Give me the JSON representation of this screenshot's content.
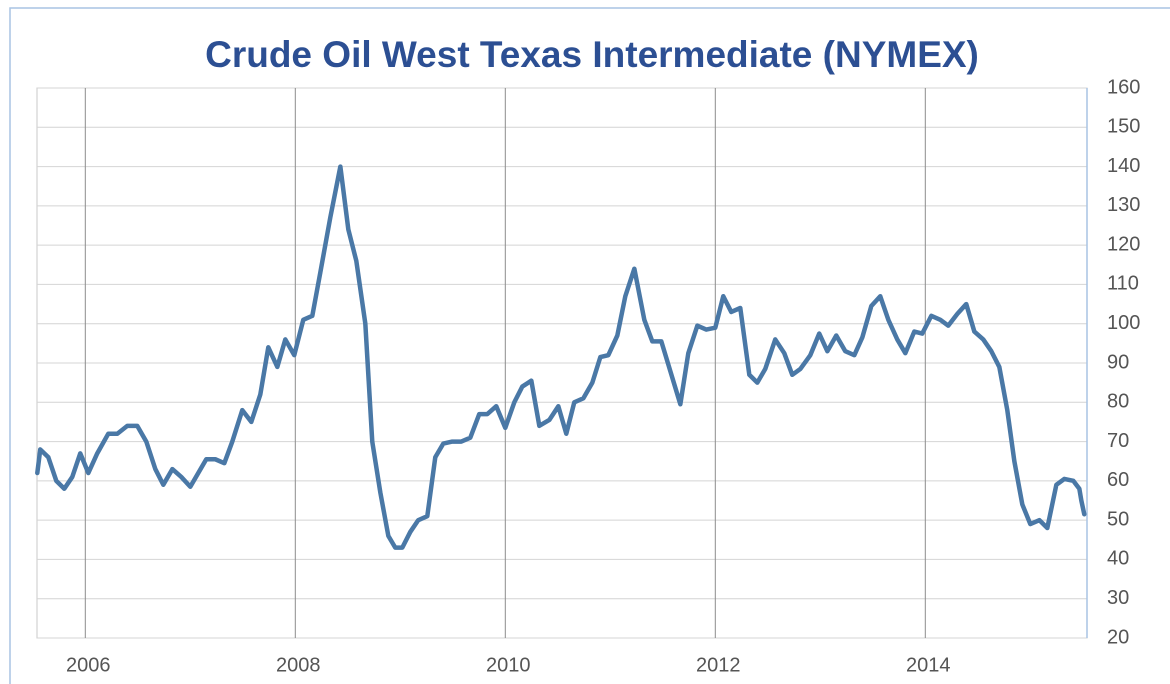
{
  "chart_data": {
    "type": "line",
    "title": "Crude Oil West Texas Intermediate (NYMEX)",
    "xlim": [
      2005.54,
      2015.54
    ],
    "xticks": [
      2006,
      2008,
      2010,
      2012,
      2014
    ],
    "ylim": [
      20,
      160
    ],
    "yticks": [
      20,
      30,
      40,
      50,
      60,
      70,
      80,
      90,
      100,
      110,
      120,
      130,
      140,
      150,
      160
    ],
    "grid": true,
    "y_axis_side": "right",
    "x": [
      2005.543,
      2005.571,
      2005.648,
      2005.724,
      2005.8,
      2005.876,
      2005.952,
      2006.029,
      2006.114,
      2006.219,
      2006.305,
      2006.4,
      2006.495,
      2006.581,
      2006.667,
      2006.743,
      2006.829,
      2006.914,
      2007.0,
      2007.076,
      2007.152,
      2007.238,
      2007.324,
      2007.4,
      2007.495,
      2007.581,
      2007.667,
      2007.743,
      2007.829,
      2007.905,
      2007.99,
      2008.076,
      2008.162,
      2008.238,
      2008.333,
      2008.429,
      2008.505,
      2008.581,
      2008.667,
      2008.733,
      2008.81,
      2008.886,
      2008.952,
      2009.019,
      2009.095,
      2009.171,
      2009.257,
      2009.333,
      2009.41,
      2009.495,
      2009.581,
      2009.667,
      2009.752,
      2009.829,
      2009.914,
      2010.0,
      2010.086,
      2010.162,
      2010.248,
      2010.324,
      2010.419,
      2010.505,
      2010.581,
      2010.657,
      2010.743,
      2010.829,
      2010.905,
      2010.981,
      2011.067,
      2011.143,
      2011.229,
      2011.324,
      2011.4,
      2011.486,
      2011.571,
      2011.667,
      2011.743,
      2011.829,
      2011.914,
      2012.0,
      2012.076,
      2012.152,
      2012.238,
      2012.324,
      2012.4,
      2012.476,
      2012.571,
      2012.657,
      2012.733,
      2012.81,
      2012.905,
      2012.99,
      2013.067,
      2013.152,
      2013.238,
      2013.324,
      2013.4,
      2013.486,
      2013.571,
      2013.648,
      2013.733,
      2013.81,
      2013.895,
      2013.971,
      2014.057,
      2014.143,
      2014.219,
      2014.305,
      2014.39,
      2014.467,
      2014.552,
      2014.629,
      2014.705,
      2014.781,
      2014.848,
      2014.924,
      2015.0,
      2015.086,
      2015.162,
      2015.248,
      2015.324,
      2015.41,
      2015.467,
      2015.486,
      2015.514
    ],
    "series": [
      {
        "color": "#4a78a6",
        "values": [
          62,
          68,
          66,
          60,
          58,
          61,
          67,
          62,
          67,
          72,
          72,
          74,
          74,
          70,
          63,
          59,
          63,
          61,
          58.5,
          62,
          65.5,
          65.5,
          64.5,
          70,
          78,
          75,
          82,
          94,
          89,
          96,
          92,
          101,
          102,
          113,
          127,
          140,
          124,
          116,
          100,
          70,
          57,
          46,
          43,
          43,
          47,
          50,
          51,
          66,
          69.5,
          70,
          70,
          71,
          77,
          77,
          79,
          73.5,
          80,
          84,
          85.5,
          74,
          75.5,
          79,
          72,
          80,
          81,
          85,
          91.5,
          92,
          97,
          107,
          114,
          101,
          95.5,
          95.5,
          88,
          79.5,
          92.5,
          99.5,
          98.5,
          99,
          107,
          103,
          104,
          87,
          85,
          88.5,
          96,
          92.5,
          87,
          88.5,
          92,
          97.5,
          93,
          97,
          93,
          92,
          96.5,
          104.5,
          107,
          101,
          96,
          92.5,
          98,
          97.5,
          102,
          101,
          99.5,
          102.5,
          105,
          98,
          96,
          93,
          89,
          78,
          65,
          54,
          49,
          50,
          48,
          59,
          60.5,
          60,
          58,
          55,
          51.5
        ]
      }
    ]
  }
}
